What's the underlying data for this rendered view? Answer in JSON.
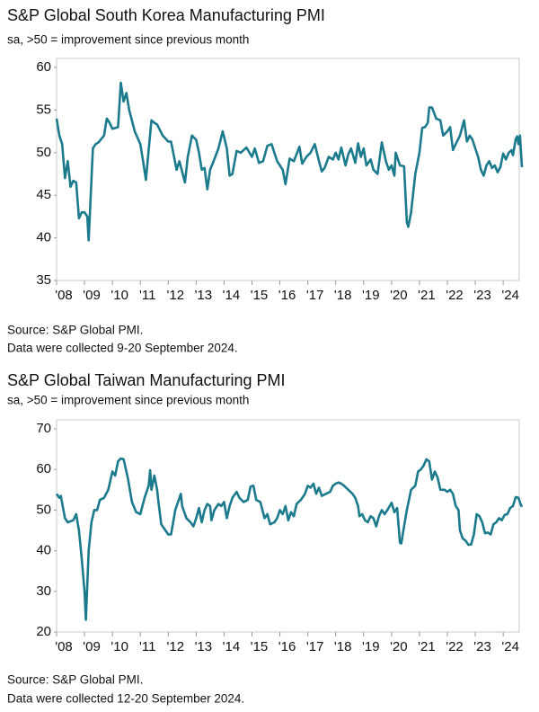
{
  "chart_data": [
    {
      "type": "line",
      "title": "S&P Global South Korea Manufacturing PMI",
      "subtitle": "sa, >50 = improvement since previous month",
      "source": "Source: S&P Global PMI.",
      "note": "Data were collected 9-20 September 2024.",
      "x": [
        2008.0,
        2008.1,
        2008.2,
        2008.3,
        2008.4,
        2008.5,
        2008.6,
        2008.7,
        2008.8,
        2008.9,
        2009.0,
        2009.1,
        2009.15,
        2009.3,
        2009.4,
        2009.5,
        2009.7,
        2009.8,
        2009.9,
        2010.0,
        2010.2,
        2010.3,
        2010.4,
        2010.5,
        2010.6,
        2010.8,
        2011.0,
        2011.1,
        2011.2,
        2011.4,
        2011.5,
        2011.6,
        2011.8,
        2012.0,
        2012.1,
        2012.3,
        2012.4,
        2012.6,
        2012.7,
        2012.85,
        2013.0,
        2013.1,
        2013.2,
        2013.3,
        2013.4,
        2013.5,
        2013.6,
        2013.8,
        2013.95,
        2014.1,
        2014.2,
        2014.3,
        2014.45,
        2014.6,
        2014.8,
        2015.0,
        2015.1,
        2015.25,
        2015.4,
        2015.55,
        2015.7,
        2015.9,
        2016.0,
        2016.1,
        2016.2,
        2016.35,
        2016.5,
        2016.7,
        2016.8,
        2016.95,
        2017.1,
        2017.25,
        2017.4,
        2017.5,
        2017.6,
        2017.75,
        2017.9,
        2018.0,
        2018.1,
        2018.2,
        2018.35,
        2018.45,
        2018.55,
        2018.7,
        2018.8,
        2018.9,
        2019.0,
        2019.1,
        2019.25,
        2019.35,
        2019.5,
        2019.65,
        2019.8,
        2019.9,
        2020.0,
        2020.1,
        2020.15,
        2020.3,
        2020.45,
        2020.55,
        2020.6,
        2020.7,
        2020.85,
        2021.0,
        2021.1,
        2021.2,
        2021.3,
        2021.35,
        2021.45,
        2021.6,
        2021.75,
        2021.85,
        2022.0,
        2022.1,
        2022.2,
        2022.3,
        2022.45,
        2022.6,
        2022.7,
        2022.8,
        2022.9,
        2023.0,
        2023.1,
        2023.2,
        2023.3,
        2023.4,
        2023.5,
        2023.6,
        2023.7,
        2023.8,
        2023.9,
        2024.0,
        2024.1,
        2024.2,
        2024.3,
        2024.35,
        2024.45,
        2024.5,
        2024.55,
        2024.6,
        2024.67
      ],
      "series": [
        {
          "color": "#1b7a8c",
          "values": [
            54,
            52,
            51,
            47,
            49,
            46,
            46.7,
            46.5,
            42.3,
            43,
            43,
            42.5,
            39.7,
            50.5,
            51,
            51.2,
            52,
            54,
            53.5,
            52.8,
            53,
            58.2,
            56,
            57,
            55,
            52.5,
            51,
            49,
            46.8,
            53.8,
            53.5,
            53.3,
            52,
            51.3,
            51.3,
            48,
            49,
            46.5,
            49.5,
            52,
            51.5,
            50,
            48,
            48.2,
            45.7,
            48,
            48.8,
            50.5,
            52.5,
            50.5,
            47.3,
            47.5,
            50.2,
            50,
            50.6,
            49.5,
            50.5,
            48.8,
            49,
            50.8,
            51,
            49,
            48.5,
            48,
            46.3,
            49.3,
            49,
            50.7,
            48.7,
            49.5,
            50,
            51,
            49,
            47.8,
            48.2,
            49.5,
            49.2,
            50,
            49.2,
            50.6,
            48.5,
            49.8,
            50.5,
            48.8,
            51.1,
            49.5,
            50.5,
            48.5,
            49.2,
            48,
            47.5,
            51.2,
            49,
            48,
            48.5,
            47.3,
            50,
            48.5,
            48.4,
            41.8,
            41.3,
            43,
            47.5,
            50,
            52.9,
            53,
            53.5,
            55.3,
            55.3,
            54,
            53.8,
            52,
            52.5,
            53,
            50.3,
            51,
            52,
            53.8,
            51.3,
            52,
            51.5,
            50.5,
            49.5,
            48,
            47.3,
            48.5,
            49,
            48.2,
            48.5,
            47.7,
            48.3,
            49.9,
            49.2,
            50,
            50.3,
            49.7,
            51.6,
            51.9,
            51,
            52,
            48.3
          ]
        }
      ],
      "xlim": [
        2008,
        2024.8
      ],
      "xticks": [
        {
          "value": 2008,
          "label": "'08"
        },
        {
          "value": 2009,
          "label": "'09"
        },
        {
          "value": 2010,
          "label": "'10"
        },
        {
          "value": 2011,
          "label": "'11"
        },
        {
          "value": 2012,
          "label": "'12"
        },
        {
          "value": 2013,
          "label": "'13"
        },
        {
          "value": 2014,
          "label": "'14"
        },
        {
          "value": 2015,
          "label": "'15"
        },
        {
          "value": 2016,
          "label": "'16"
        },
        {
          "value": 2017,
          "label": "'17"
        },
        {
          "value": 2018,
          "label": "'18"
        },
        {
          "value": 2019,
          "label": "'19"
        },
        {
          "value": 2020,
          "label": "'20"
        },
        {
          "value": 2021,
          "label": "'21"
        },
        {
          "value": 2022,
          "label": "'22"
        },
        {
          "value": 2023,
          "label": "'23"
        },
        {
          "value": 2024,
          "label": "'24"
        }
      ],
      "ylim": [
        35,
        60
      ],
      "yticks": [
        35,
        40,
        45,
        50,
        55,
        60
      ]
    },
    {
      "type": "line",
      "title": "S&P Global Taiwan Manufacturing PMI",
      "subtitle": "sa, >50 = improvement since previous month",
      "source": "Source: S&P Global PMI.",
      "note": "Data were collected 12-20 September 2024.",
      "x": [
        2008.0,
        2008.1,
        2008.15,
        2008.3,
        2008.4,
        2008.6,
        2008.7,
        2008.8,
        2008.9,
        2009.0,
        2009.05,
        2009.15,
        2009.25,
        2009.35,
        2009.45,
        2009.55,
        2009.7,
        2009.85,
        2010.0,
        2010.1,
        2010.2,
        2010.3,
        2010.4,
        2010.55,
        2010.7,
        2010.85,
        2011.0,
        2011.15,
        2011.3,
        2011.35,
        2011.4,
        2011.5,
        2011.6,
        2011.65,
        2011.75,
        2011.9,
        2012.0,
        2012.1,
        2012.25,
        2012.35,
        2012.45,
        2012.5,
        2012.65,
        2012.8,
        2012.9,
        2013.0,
        2013.1,
        2013.2,
        2013.3,
        2013.4,
        2013.5,
        2013.55,
        2013.65,
        2013.8,
        2013.9,
        2014.0,
        2014.1,
        2014.2,
        2014.3,
        2014.45,
        2014.55,
        2014.7,
        2014.85,
        2014.95,
        2015.05,
        2015.15,
        2015.3,
        2015.45,
        2015.55,
        2015.65,
        2015.8,
        2015.9,
        2016.0,
        2016.1,
        2016.2,
        2016.3,
        2016.4,
        2016.5,
        2016.6,
        2016.75,
        2016.9,
        2017.0,
        2017.1,
        2017.2,
        2017.3,
        2017.4,
        2017.5,
        2017.65,
        2017.8,
        2017.9,
        2018.0,
        2018.1,
        2018.2,
        2018.3,
        2018.45,
        2018.6,
        2018.7,
        2018.8,
        2018.85,
        2018.95,
        2019.05,
        2019.15,
        2019.25,
        2019.35,
        2019.45,
        2019.55,
        2019.65,
        2019.75,
        2019.85,
        2020.0,
        2020.1,
        2020.2,
        2020.3,
        2020.35,
        2020.45,
        2020.55,
        2020.7,
        2020.85,
        2020.95,
        2021.05,
        2021.15,
        2021.25,
        2021.35,
        2021.45,
        2021.55,
        2021.65,
        2021.75,
        2021.9,
        2022.0,
        2022.1,
        2022.2,
        2022.3,
        2022.4,
        2022.45,
        2022.55,
        2022.65,
        2022.75,
        2022.85,
        2022.95,
        2023.05,
        2023.15,
        2023.25,
        2023.35,
        2023.45,
        2023.55,
        2023.65,
        2023.75,
        2023.85,
        2023.95,
        2024.05,
        2024.15,
        2024.25,
        2024.35,
        2024.45,
        2024.55,
        2024.62,
        2024.67
      ],
      "series": [
        {
          "color": "#1b7a8c",
          "values": [
            54,
            53,
            53.5,
            48,
            47,
            47.5,
            49,
            45,
            38,
            30,
            23,
            40,
            47,
            50,
            50,
            52.5,
            53,
            55,
            59.5,
            58.5,
            62,
            62.7,
            62.5,
            58,
            52,
            49.5,
            49,
            53,
            56,
            59.8,
            55,
            58.5,
            55,
            52,
            46.5,
            45,
            44,
            44,
            50,
            52,
            54,
            51,
            48,
            47,
            46,
            48,
            50.5,
            47,
            50,
            51.5,
            51,
            47.5,
            50,
            51.5,
            51,
            52,
            48,
            51,
            53,
            54.5,
            53,
            52,
            52.5,
            55.8,
            56,
            52.5,
            52,
            48,
            49,
            46.5,
            47,
            48,
            50,
            49,
            51,
            47.5,
            49.5,
            48.5,
            51.5,
            52.5,
            54,
            56,
            55.5,
            56.5,
            54,
            55.5,
            53.5,
            54,
            54.5,
            56,
            56.5,
            56.8,
            56.5,
            56,
            55,
            54,
            53,
            51,
            48.5,
            49,
            47.5,
            47,
            48.5,
            48,
            46,
            48.5,
            50,
            49,
            50,
            51.8,
            49.5,
            50.5,
            42,
            41.8,
            46,
            50,
            55,
            56,
            59.5,
            60,
            61,
            62.5,
            62,
            57.5,
            59.5,
            58,
            55,
            55,
            54.5,
            55,
            54,
            51,
            50,
            45,
            43,
            42.5,
            41.5,
            41.5,
            44,
            49,
            48.5,
            47,
            44.3,
            44.5,
            44,
            46.5,
            47,
            48,
            47.5,
            48.8,
            49,
            50.5,
            51,
            53.2,
            53,
            51.5,
            50.8
          ]
        }
      ],
      "xlim": [
        2008,
        2024.8
      ],
      "xticks": [
        {
          "value": 2008,
          "label": "'08"
        },
        {
          "value": 2009,
          "label": "'09"
        },
        {
          "value": 2010,
          "label": "'10"
        },
        {
          "value": 2011,
          "label": "'11"
        },
        {
          "value": 2012,
          "label": "'12"
        },
        {
          "value": 2013,
          "label": "'13"
        },
        {
          "value": 2014,
          "label": "'14"
        },
        {
          "value": 2015,
          "label": "'15"
        },
        {
          "value": 2016,
          "label": "'16"
        },
        {
          "value": 2017,
          "label": "'17"
        },
        {
          "value": 2018,
          "label": "'18"
        },
        {
          "value": 2019,
          "label": "'19"
        },
        {
          "value": 2020,
          "label": "'20"
        },
        {
          "value": 2021,
          "label": "'21"
        },
        {
          "value": 2022,
          "label": "'22"
        },
        {
          "value": 2023,
          "label": "'23"
        },
        {
          "value": 2024,
          "label": "'24"
        }
      ],
      "ylim": [
        20,
        70
      ],
      "yticks": [
        20,
        30,
        40,
        50,
        60,
        70
      ]
    }
  ]
}
